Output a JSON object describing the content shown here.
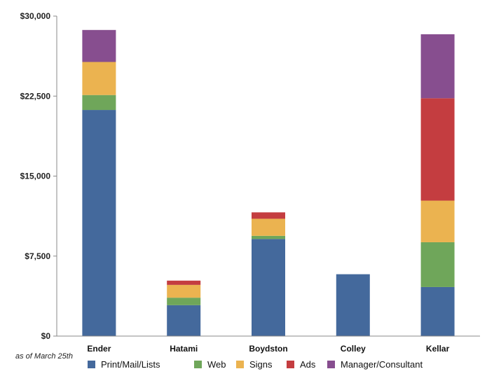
{
  "chart_data": {
    "type": "bar",
    "stacked": true,
    "categories": [
      "Ender",
      "Hatami",
      "Boydston",
      "Colley",
      "Kellar"
    ],
    "series": [
      {
        "name": "Print/Mail/Lists",
        "color": "#44699c",
        "values": [
          21200,
          2900,
          9100,
          5800,
          4600
        ]
      },
      {
        "name": "Web",
        "color": "#6fa65a",
        "values": [
          1400,
          700,
          300,
          0,
          4200
        ]
      },
      {
        "name": "Signs",
        "color": "#ebb350",
        "values": [
          3100,
          1200,
          1600,
          0,
          3900
        ]
      },
      {
        "name": "Ads",
        "color": "#c43d40",
        "values": [
          0,
          400,
          600,
          0,
          9600
        ]
      },
      {
        "name": "Manager/Consultant",
        "color": "#874e8f",
        "values": [
          3000,
          0,
          0,
          0,
          6000
        ]
      }
    ],
    "ylim": [
      0,
      30000
    ],
    "yticks": [
      0,
      7500,
      15000,
      22500,
      30000
    ],
    "ytick_labels": [
      "$0",
      "$7,500",
      "$15,000",
      "$22,500",
      "$30,000"
    ],
    "grid": false,
    "legend_position": "bottom",
    "annotation": "as of March 25th"
  }
}
